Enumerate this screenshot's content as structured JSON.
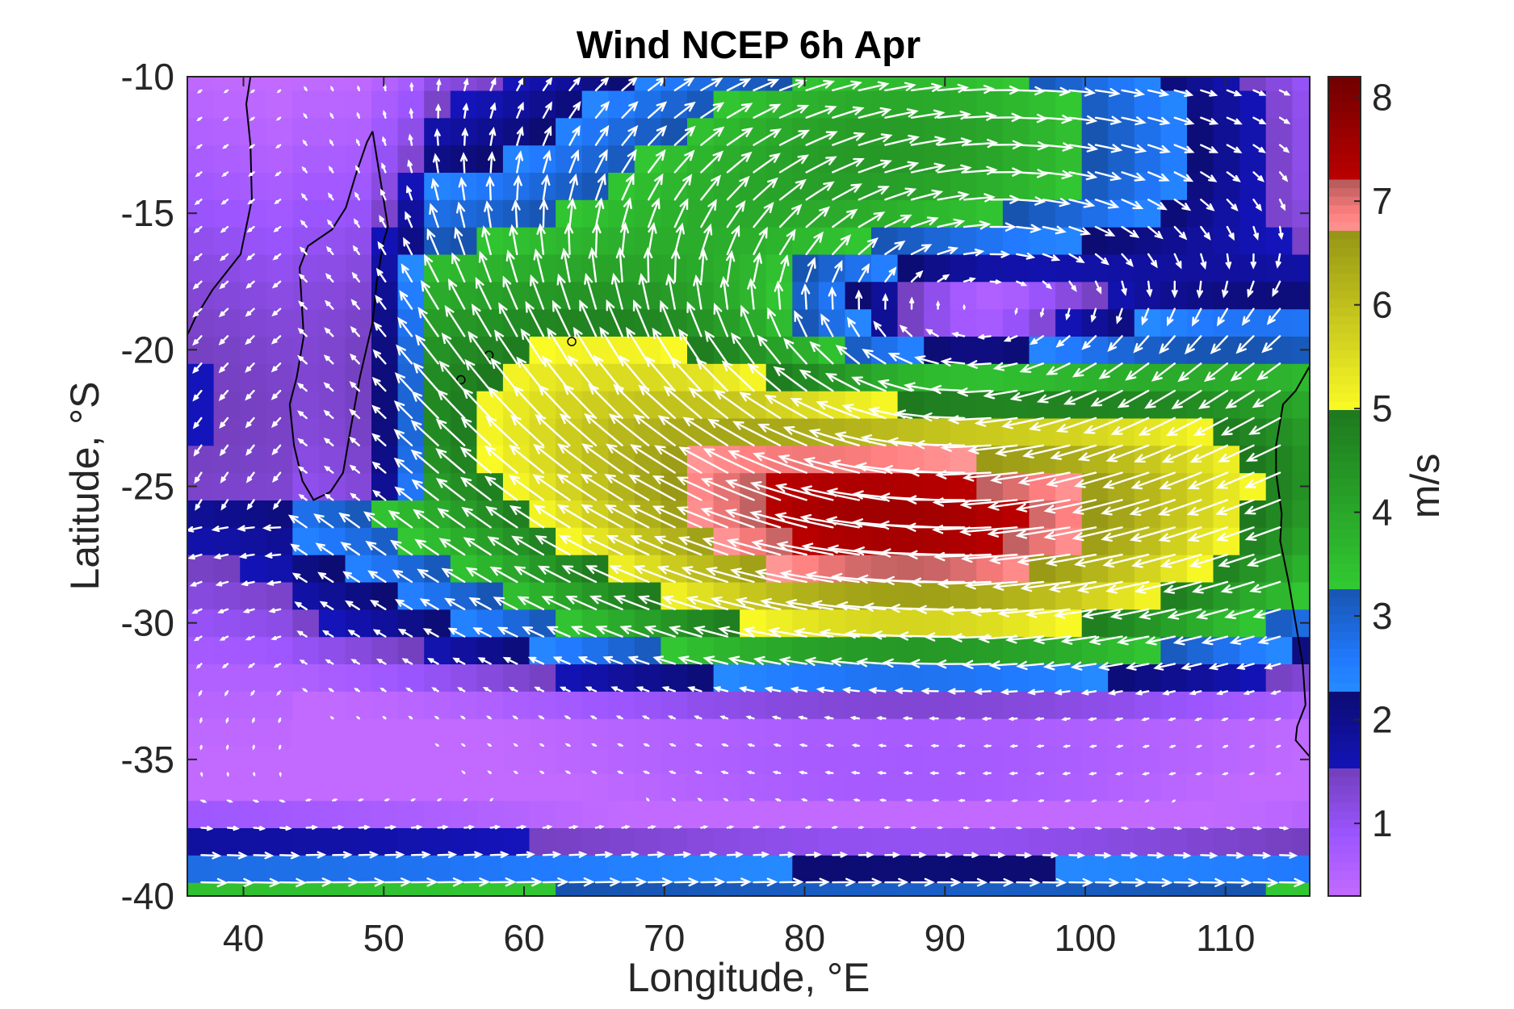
{
  "chart_data": {
    "type": "heatmap",
    "title": "Wind NCEP 6h Apr",
    "xlabel": "Longitude, °E",
    "ylabel": "Latitude, °S",
    "colorbar_label": "m/s",
    "xlim": [
      36,
      116
    ],
    "ylim": [
      -40,
      -10
    ],
    "xticks": [
      40,
      50,
      60,
      70,
      80,
      90,
      100,
      110
    ],
    "yticks": [
      -10,
      -15,
      -20,
      -25,
      -30,
      -35,
      -40
    ],
    "colorbar_range": [
      0.3,
      8.2
    ],
    "colorbar_ticks": [
      1,
      2,
      3,
      4,
      5,
      6,
      7,
      8
    ],
    "colormap": [
      {
        "from": 0.3,
        "to": 1.5,
        "color": "#9b55ff"
      },
      {
        "from": 1.5,
        "to": 2.3,
        "color": "#101096"
      },
      {
        "from": 2.3,
        "to": 3.3,
        "color": "#1e6ee6"
      },
      {
        "from": 3.3,
        "to": 5.0,
        "color": "#28a028"
      },
      {
        "from": 5.0,
        "to": 6.7,
        "color": "#c8c81e"
      },
      {
        "from": 6.7,
        "to": 7.2,
        "color": "#f07878"
      },
      {
        "from": 7.2,
        "to": 8.2,
        "color": "#960000"
      }
    ],
    "overlay": "white wind vectors",
    "pattern": "anticyclonic gyre centered near 88°E, 20°S with maximum speed ~7.5 m/s; weak winds (<2 m/s) in band 32–36°S and east of Madagascar; westerlies south of 37°S"
  },
  "colors": {
    "axis": "#262626",
    "arrow": "#ffffff",
    "coast": "#000000"
  }
}
